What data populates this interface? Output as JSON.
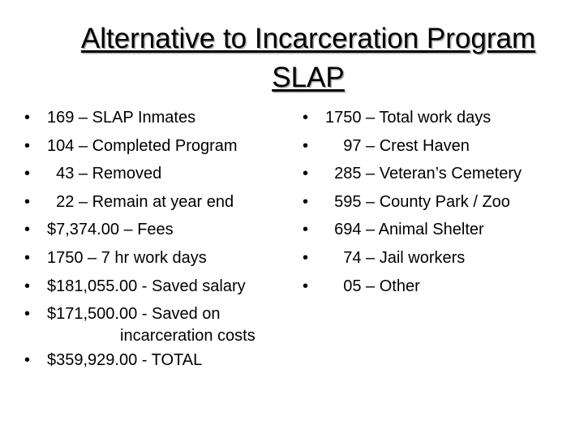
{
  "slide": {
    "title_line1": "Alternative to Incarceration Program",
    "title_line2": "SLAP",
    "bullet_char": "•",
    "left_items": [
      "169 – SLAP Inmates",
      "104 – Completed Program",
      "  43 – Removed",
      "  22 – Remain at year end",
      "$7,374.00 – Fees",
      "1750 – 7 hr work days",
      "$181,055.00 - Saved salary",
      "$171,500.00 - Saved on",
      "$359,929.00 - TOTAL"
    ],
    "left_item_8_continuation": "incarceration costs",
    "right_items": [
      "1750 – Total work days",
      "    97 – Crest Haven",
      "  285 – Veteran’s Cemetery",
      "  595 – County Park / Zoo",
      "  694 – Animal Shelter",
      "    74 – Jail workers",
      "    05 – Other"
    ]
  }
}
